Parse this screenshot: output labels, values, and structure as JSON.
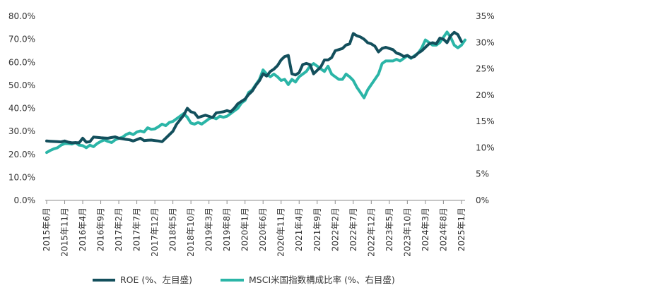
{
  "chart_data": {
    "type": "line",
    "title": "",
    "xlabel": "",
    "y_left_label": "",
    "y_right_label": "",
    "grid": false,
    "legend_position": "bottom",
    "x_tick_labels": [
      "2015年6月",
      "2015年11月",
      "2016年4月",
      "2016年9月",
      "2017年2月",
      "2017年7月",
      "2017年12月",
      "2018年5月",
      "2018年10月",
      "2019年3月",
      "2019年8月",
      "2020年1月",
      "2020年6月",
      "2020年11月",
      "2021年4月",
      "2021年9月",
      "2022年2月",
      "2022年7月",
      "2022年12月",
      "2023年5月",
      "2023年10月",
      "2024年3月",
      "2024年8月",
      "2025年1月"
    ],
    "y_left_ticks": [
      "0.0%",
      "10.0%",
      "20.0%",
      "30.0%",
      "40.0%",
      "50.0%",
      "60.0%",
      "70.0%",
      "80.0%"
    ],
    "y_left_range": [
      0,
      80
    ],
    "y_right_ticks": [
      "0%",
      "5%",
      "10%",
      "15%",
      "20%",
      "25%",
      "30%",
      "35%"
    ],
    "y_right_range": [
      0,
      35
    ],
    "series": [
      {
        "name": "ROE (%、左目盛)",
        "axis": "left",
        "color": "#134f5c",
        "points": [
          [
            0,
            25.8
          ],
          [
            2,
            25.6
          ],
          [
            4,
            25.4
          ],
          [
            5,
            25.8
          ],
          [
            6,
            25.3
          ],
          [
            7,
            25.0
          ],
          [
            8,
            25.1
          ],
          [
            9,
            25.0
          ],
          [
            10,
            27.0
          ],
          [
            11,
            25.3
          ],
          [
            12,
            25.5
          ],
          [
            13,
            27.5
          ],
          [
            15,
            27.2
          ],
          [
            17,
            27.0
          ],
          [
            18,
            27.3
          ],
          [
            19,
            27.6
          ],
          [
            20,
            27.0
          ],
          [
            21,
            26.8
          ],
          [
            22,
            26.5
          ],
          [
            23,
            26.3
          ],
          [
            24,
            25.8
          ],
          [
            26,
            27.0
          ],
          [
            27,
            26.0
          ],
          [
            29,
            26.2
          ],
          [
            31,
            25.8
          ],
          [
            32,
            25.5
          ],
          [
            33,
            27.0
          ],
          [
            35,
            30.0
          ],
          [
            36,
            33.0
          ],
          [
            37,
            35.0
          ],
          [
            38,
            37.0
          ],
          [
            39,
            40.0
          ],
          [
            40,
            38.5
          ],
          [
            41,
            38.0
          ],
          [
            42,
            36.0
          ],
          [
            44,
            37.0
          ],
          [
            45,
            36.5
          ],
          [
            46,
            36.0
          ],
          [
            47,
            38.0
          ],
          [
            49,
            38.5
          ],
          [
            50,
            39.0
          ],
          [
            51,
            38.5
          ],
          [
            52,
            40.0
          ],
          [
            53,
            42.0
          ],
          [
            54,
            43.0
          ],
          [
            55,
            44.0
          ],
          [
            56,
            46.0
          ],
          [
            57,
            47.5
          ],
          [
            58,
            50.0
          ],
          [
            59,
            52.0
          ],
          [
            60,
            55.0
          ],
          [
            61,
            54.0
          ],
          [
            62,
            56.0
          ],
          [
            63,
            57.0
          ],
          [
            64,
            58.5
          ],
          [
            65,
            61.0
          ],
          [
            66,
            62.5
          ],
          [
            67,
            63.0
          ],
          [
            68,
            55.0
          ],
          [
            69,
            54.5
          ],
          [
            70,
            55.5
          ],
          [
            71,
            59.0
          ],
          [
            72,
            59.5
          ],
          [
            73,
            59.0
          ],
          [
            74,
            55.0
          ],
          [
            75,
            56.5
          ],
          [
            76,
            58.0
          ],
          [
            77,
            61.0
          ],
          [
            78,
            61.0
          ],
          [
            79,
            62.0
          ],
          [
            80,
            65.0
          ],
          [
            81,
            65.5
          ],
          [
            82,
            66.0
          ],
          [
            83,
            67.5
          ],
          [
            84,
            68.0
          ],
          [
            85,
            72.5
          ],
          [
            86,
            71.5
          ],
          [
            87,
            71.0
          ],
          [
            88,
            70.0
          ],
          [
            89,
            68.5
          ],
          [
            90,
            68.0
          ],
          [
            91,
            67.0
          ],
          [
            92,
            64.5
          ],
          [
            93,
            66.0
          ],
          [
            94,
            66.5
          ],
          [
            95,
            66.0
          ],
          [
            96,
            65.5
          ],
          [
            97,
            64.0
          ],
          [
            98,
            63.5
          ],
          [
            99,
            62.5
          ],
          [
            100,
            63.0
          ],
          [
            101,
            62.0
          ],
          [
            102,
            62.5
          ],
          [
            103,
            64.0
          ],
          [
            104,
            65.0
          ],
          [
            105,
            66.5
          ],
          [
            106,
            68.0
          ],
          [
            107,
            68.5
          ],
          [
            108,
            68.0
          ],
          [
            109,
            70.5
          ],
          [
            110,
            70.0
          ],
          [
            111,
            68.5
          ],
          [
            112,
            71.5
          ],
          [
            113,
            73.0
          ],
          [
            114,
            72.0
          ],
          [
            115,
            69.0
          ]
        ]
      },
      {
        "name": "MSCI米国指数構成比率 (%、右目盛)",
        "axis": "right",
        "color": "#2bb5a7",
        "points": [
          [
            0,
            9.1
          ],
          [
            1,
            9.5
          ],
          [
            2,
            9.8
          ],
          [
            3,
            10.0
          ],
          [
            4,
            10.5
          ],
          [
            5,
            10.8
          ],
          [
            6,
            10.8
          ],
          [
            7,
            10.7
          ],
          [
            8,
            11.0
          ],
          [
            9,
            10.5
          ],
          [
            10,
            10.4
          ],
          [
            11,
            10.0
          ],
          [
            12,
            10.5
          ],
          [
            13,
            10.2
          ],
          [
            14,
            10.8
          ],
          [
            15,
            11.2
          ],
          [
            16,
            11.5
          ],
          [
            17,
            11.2
          ],
          [
            18,
            11.0
          ],
          [
            19,
            11.5
          ],
          [
            20,
            11.8
          ],
          [
            21,
            12.0
          ],
          [
            22,
            12.5
          ],
          [
            23,
            12.8
          ],
          [
            24,
            12.5
          ],
          [
            25,
            13.0
          ],
          [
            26,
            13.2
          ],
          [
            27,
            13.0
          ],
          [
            28,
            13.8
          ],
          [
            29,
            13.5
          ],
          [
            30,
            13.6
          ],
          [
            31,
            14.0
          ],
          [
            32,
            14.5
          ],
          [
            33,
            14.2
          ],
          [
            34,
            14.8
          ],
          [
            35,
            15.0
          ],
          [
            36,
            15.5
          ],
          [
            37,
            16.0
          ],
          [
            38,
            16.5
          ],
          [
            39,
            15.8
          ],
          [
            40,
            14.7
          ],
          [
            41,
            14.5
          ],
          [
            42,
            14.8
          ],
          [
            43,
            14.5
          ],
          [
            44,
            15.0
          ],
          [
            45,
            15.5
          ],
          [
            46,
            15.8
          ],
          [
            47,
            15.5
          ],
          [
            48,
            16.0
          ],
          [
            49,
            15.8
          ],
          [
            50,
            16.0
          ],
          [
            51,
            16.5
          ],
          [
            52,
            17.0
          ],
          [
            53,
            17.5
          ],
          [
            54,
            18.5
          ],
          [
            55,
            19.0
          ],
          [
            56,
            20.5
          ],
          [
            57,
            21.0
          ],
          [
            58,
            22.0
          ],
          [
            59,
            23.0
          ],
          [
            60,
            24.8
          ],
          [
            61,
            24.0
          ],
          [
            62,
            23.5
          ],
          [
            63,
            24.0
          ],
          [
            64,
            23.5
          ],
          [
            65,
            22.8
          ],
          [
            66,
            23.0
          ],
          [
            67,
            22.0
          ],
          [
            68,
            23.0
          ],
          [
            69,
            22.5
          ],
          [
            70,
            23.5
          ],
          [
            71,
            24.0
          ],
          [
            72,
            24.5
          ],
          [
            73,
            25.5
          ],
          [
            74,
            26.0
          ],
          [
            75,
            25.5
          ],
          [
            76,
            25.0
          ],
          [
            77,
            24.5
          ],
          [
            78,
            25.5
          ],
          [
            79,
            24.0
          ],
          [
            80,
            23.5
          ],
          [
            81,
            23.0
          ],
          [
            82,
            23.0
          ],
          [
            83,
            24.0
          ],
          [
            84,
            23.5
          ],
          [
            85,
            22.8
          ],
          [
            86,
            21.5
          ],
          [
            87,
            20.5
          ],
          [
            88,
            19.5
          ],
          [
            89,
            21.0
          ],
          [
            90,
            22.0
          ],
          [
            91,
            23.0
          ],
          [
            92,
            24.0
          ],
          [
            93,
            26.0
          ],
          [
            94,
            26.5
          ],
          [
            95,
            26.5
          ],
          [
            96,
            26.5
          ],
          [
            97,
            26.8
          ],
          [
            98,
            26.5
          ],
          [
            99,
            27.0
          ],
          [
            100,
            27.5
          ],
          [
            101,
            27.0
          ],
          [
            102,
            27.5
          ],
          [
            103,
            28.0
          ],
          [
            104,
            29.0
          ],
          [
            105,
            30.5
          ],
          [
            106,
            30.0
          ],
          [
            107,
            29.5
          ],
          [
            108,
            29.5
          ],
          [
            109,
            30.0
          ],
          [
            110,
            31.0
          ],
          [
            111,
            32.0
          ],
          [
            112,
            31.0
          ],
          [
            113,
            29.5
          ],
          [
            114,
            29.0
          ],
          [
            115,
            29.5
          ],
          [
            116,
            30.5
          ]
        ]
      }
    ]
  }
}
